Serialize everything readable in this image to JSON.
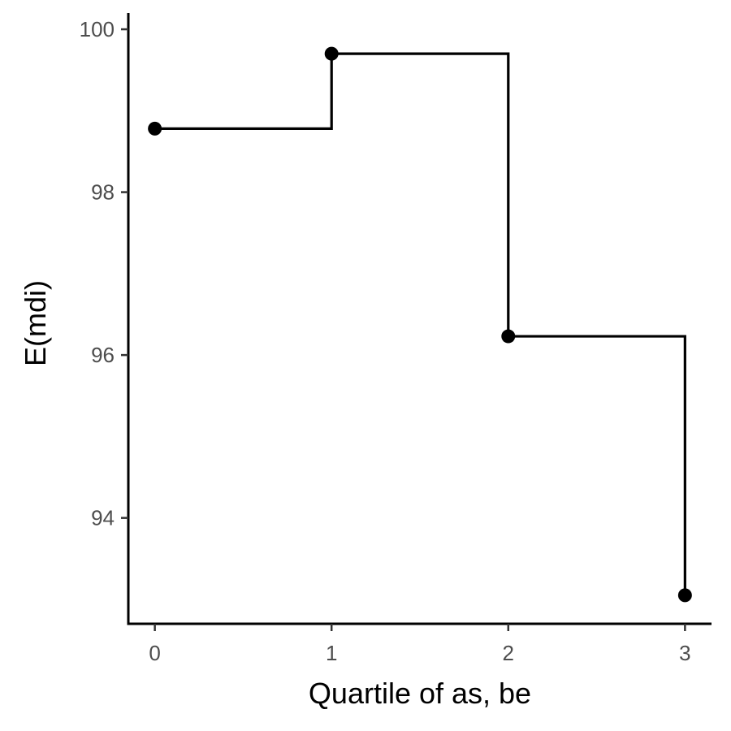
{
  "chart_data": {
    "type": "line",
    "step": "post",
    "x": [
      0,
      1,
      2,
      3
    ],
    "y": [
      98.78,
      99.7,
      96.23,
      93.05
    ],
    "xlabel": "Quartile of as, be",
    "ylabel": "E(mdi)",
    "xlim": [
      -0.15,
      3.15
    ],
    "ylim": [
      92.7,
      100.2
    ],
    "xticks": [
      0,
      1,
      2,
      3
    ],
    "yticks": [
      94,
      96,
      98,
      100
    ],
    "grid": false,
    "legend": "none",
    "color": "#000000"
  }
}
